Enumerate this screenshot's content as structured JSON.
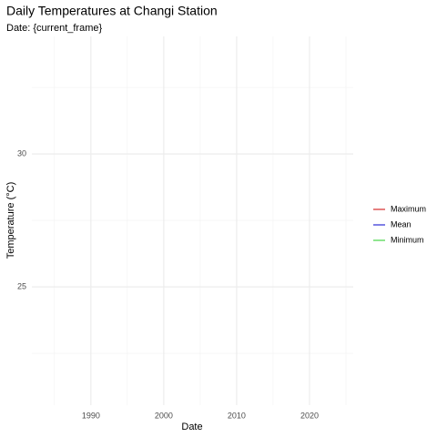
{
  "chart_data": {
    "type": "line",
    "title": "Daily Temperatures at Changi Station",
    "subtitle": "Date: {current_frame}",
    "x_label": "Date",
    "y_label": "Temperature (°C)",
    "x": [],
    "series": [
      {
        "name": "Maximum",
        "color": "#cc0000",
        "values": []
      },
      {
        "name": "Mean",
        "color": "#0000cc",
        "values": []
      },
      {
        "name": "Minimum",
        "color": "#22cc22",
        "values": []
      }
    ],
    "xlim": [
      1981.9,
      2026
    ],
    "xticks": [
      1990,
      2000,
      2010,
      2020
    ],
    "ylim": [
      20.55,
      34.42
    ],
    "yticks": [
      25,
      30
    ],
    "grid": true,
    "legend": "right"
  }
}
